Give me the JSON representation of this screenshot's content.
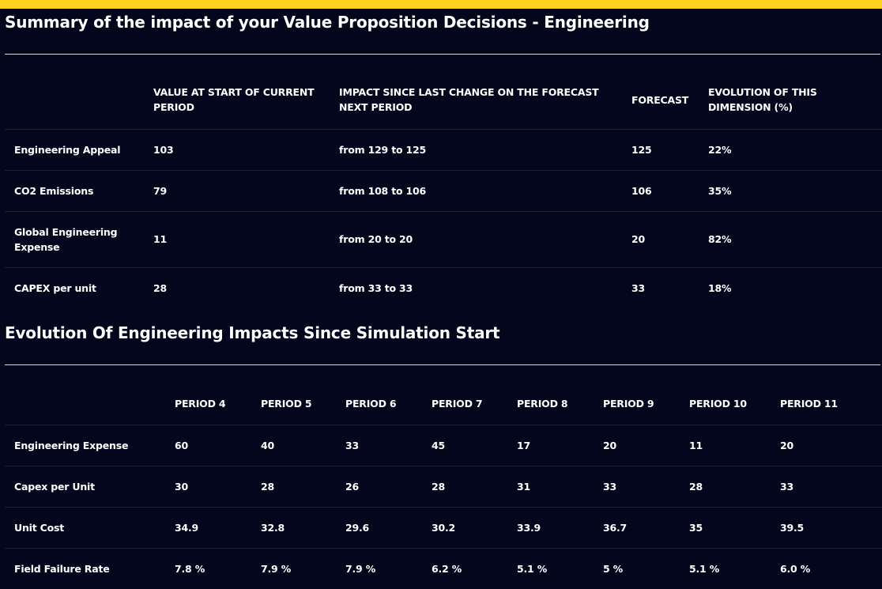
{
  "summary": {
    "title": "Summary of the impact of your Value Proposition Decisions - Engineering",
    "headers": {
      "dimension": "",
      "value_start": "VALUE AT START OF CURRENT PERIOD",
      "impact": "IMPACT SINCE LAST CHANGE ON THE FORECAST NEXT PERIOD",
      "forecast": "FORECAST",
      "evolution": "EVOLUTION OF THIS DIMENSION (%)"
    },
    "rows": [
      {
        "label": "Engineering Appeal",
        "value_start": "103",
        "impact": "from 129 to 125",
        "forecast": "125",
        "evolution": "22%"
      },
      {
        "label": "CO2 Emissions",
        "value_start": "79",
        "impact": "from 108 to 106",
        "forecast": "106",
        "evolution": "35%"
      },
      {
        "label": "Global Engineering Expense",
        "value_start": "11",
        "impact": "from 20 to 20",
        "forecast": "20",
        "evolution": "82%"
      },
      {
        "label": "CAPEX per unit",
        "value_start": "28",
        "impact": "from 33 to 33",
        "forecast": "33",
        "evolution": "18%"
      }
    ]
  },
  "evolution": {
    "title": "Evolution Of Engineering Impacts Since Simulation Start",
    "periods": [
      "PERIOD 4",
      "PERIOD 5",
      "PERIOD 6",
      "PERIOD 7",
      "PERIOD 8",
      "PERIOD 9",
      "PERIOD 10",
      "PERIOD 11"
    ],
    "rows": [
      {
        "label": "Engineering Expense",
        "values": [
          "60",
          "40",
          "33",
          "45",
          "17",
          "20",
          "11",
          "20"
        ]
      },
      {
        "label": "Capex per Unit",
        "values": [
          "30",
          "28",
          "26",
          "28",
          "31",
          "33",
          "28",
          "33"
        ]
      },
      {
        "label": "Unit Cost",
        "values": [
          "34.9",
          "32.8",
          "29.6",
          "30.2",
          "33.9",
          "36.7",
          "35",
          "39.5"
        ]
      },
      {
        "label": "Field Failure Rate",
        "values": [
          "7.8 %",
          "7.9 %",
          "7.9 %",
          "6.2 %",
          "5.1 %",
          "5 %",
          "5.1 %",
          "6.0 %"
        ]
      }
    ]
  }
}
